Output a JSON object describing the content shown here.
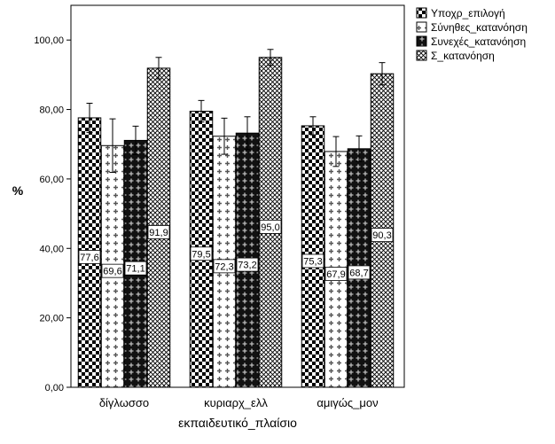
{
  "chart_data": {
    "type": "bar",
    "xlabel": "εκπαιδευτικό_πλαίσιο",
    "ylabel": "%",
    "ylim": [
      0,
      110
    ],
    "yticks": [
      0,
      20,
      40,
      60,
      80,
      100
    ],
    "ytick_labels": [
      "0,00",
      "20,00",
      "40,00",
      "60,00",
      "80,00",
      "100,00"
    ],
    "grid": false,
    "legend_position": "top-right, outside plot",
    "categories": [
      "δίγλωσσο",
      "κυριαρχ_ελλ",
      "αμιγώς_μον"
    ],
    "series": [
      {
        "name": "Υποχρ_επιλογή",
        "pattern": "checker",
        "values": [
          77.6,
          79.5,
          75.3
        ],
        "value_labels": [
          "77,6",
          "79,5",
          "75,3"
        ],
        "error_high": [
          81.8,
          82.6,
          77.9
        ],
        "error_low": [
          73.4,
          76.4,
          72.7
        ]
      },
      {
        "name": "Σύνηθες_κατανόηση",
        "pattern": "cross",
        "values": [
          69.6,
          72.3,
          67.9
        ],
        "value_labels": [
          "69,6",
          "72,3",
          "67,9"
        ],
        "error_high": [
          77.3,
          77.5,
          72.2
        ],
        "error_low": [
          61.9,
          67.1,
          63.6
        ]
      },
      {
        "name": "Συνεχές_κατανόηση",
        "pattern": "dark-cross",
        "values": [
          71.1,
          73.2,
          68.7
        ],
        "value_labels": [
          "71,1",
          "73,2",
          "68,7"
        ],
        "error_high": [
          75.2,
          77.9,
          72.4
        ],
        "error_low": [
          67.0,
          68.5,
          65.0
        ]
      },
      {
        "name": "Σ_κατανόηση",
        "pattern": "diamond",
        "values": [
          91.9,
          95.0,
          90.3
        ],
        "value_labels": [
          "91,9",
          "95,0",
          "90,3"
        ],
        "error_high": [
          95.0,
          97.3,
          93.5
        ],
        "error_low": [
          88.8,
          92.7,
          87.1
        ]
      }
    ]
  },
  "colors": {
    "background": "#ffffff",
    "bar_outline": "#000000",
    "pattern": "#000000"
  }
}
